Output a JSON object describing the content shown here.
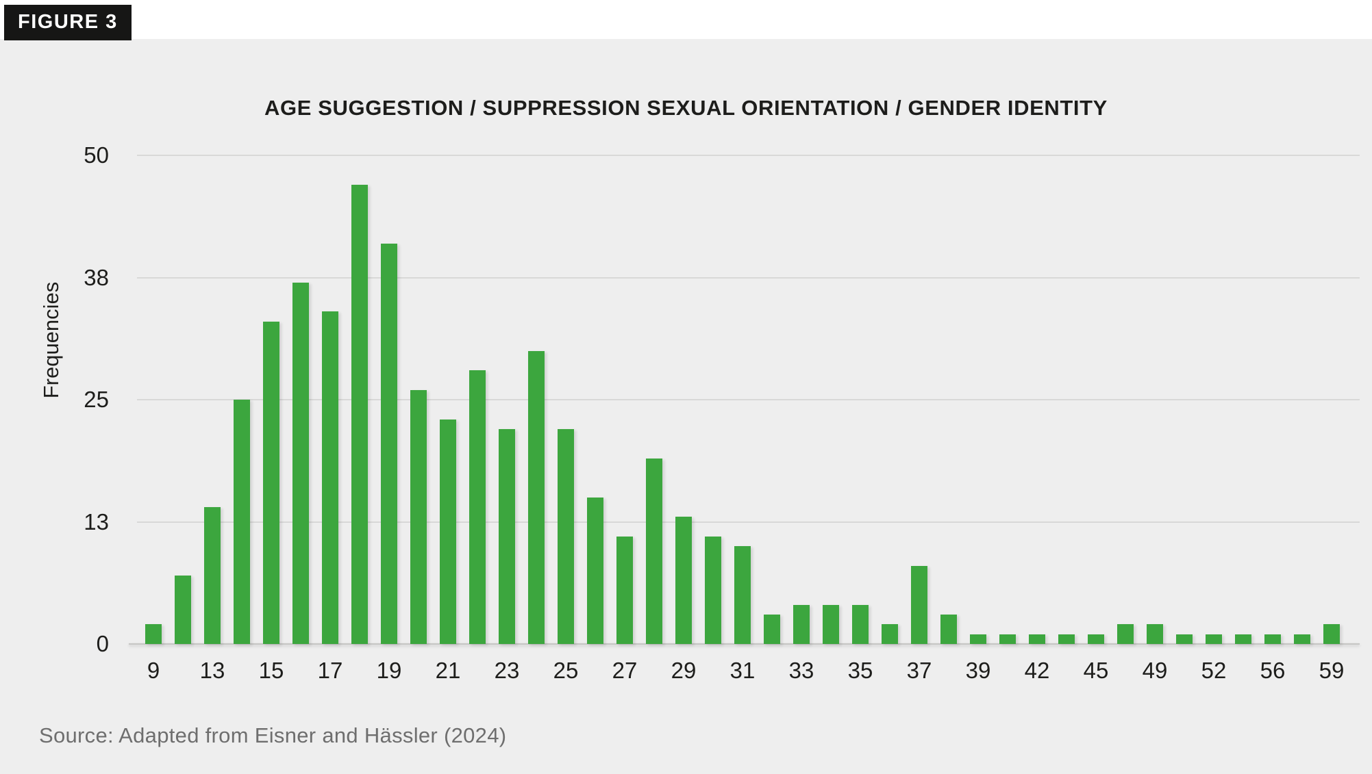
{
  "figure_badge": "FIGURE 3",
  "source": "Source: Adapted from Eisner and Hässler (2024)",
  "colors": {
    "panel_background": "#eeeeee",
    "bar_green": "#3ca63e",
    "badge_background": "#161615",
    "gridline": "#d8d8d7",
    "text_dark": "#1d1d1b",
    "source_gray": "#6e6e6e"
  },
  "chart_data": {
    "type": "bar",
    "title": "AGE SUGGESTION / SUPPRESSION SEXUAL ORIENTATION / GENDER IDENTITY",
    "xlabel": "",
    "ylabel": "Frequencies",
    "ylim": [
      0,
      50
    ],
    "grid": "horizontal",
    "legend": "none",
    "y_ticks": [
      {
        "value": 0,
        "label": "0"
      },
      {
        "value": 12.5,
        "label": "13"
      },
      {
        "value": 25,
        "label": "25"
      },
      {
        "value": 37.5,
        "label": "38"
      },
      {
        "value": 50,
        "label": "50"
      }
    ],
    "x_tick_labels_shown": [
      "9",
      "13",
      "15",
      "17",
      "19",
      "21",
      "23",
      "25",
      "27",
      "29",
      "31",
      "33",
      "35",
      "37",
      "39",
      "42",
      "45",
      "49",
      "52",
      "56",
      "59"
    ],
    "categories": [
      "9",
      "",
      "13",
      "",
      "15",
      "",
      "17",
      "",
      "19",
      "",
      "21",
      "",
      "23",
      "",
      "25",
      "",
      "27",
      "",
      "29",
      "",
      "31",
      "",
      "33",
      "",
      "35",
      "",
      "37",
      "",
      "39",
      "",
      "42",
      "",
      "45",
      "",
      "49",
      "",
      "52",
      "",
      "56",
      "",
      "59"
    ],
    "values": [
      2,
      7,
      14,
      25,
      33,
      37,
      34,
      47,
      41,
      26,
      23,
      28,
      22,
      30,
      22,
      15,
      11,
      19,
      13,
      11,
      10,
      3,
      4,
      4,
      4,
      2,
      8,
      3,
      1,
      1,
      1,
      1,
      1,
      2,
      2,
      1,
      1,
      1,
      1,
      1,
      2
    ]
  }
}
